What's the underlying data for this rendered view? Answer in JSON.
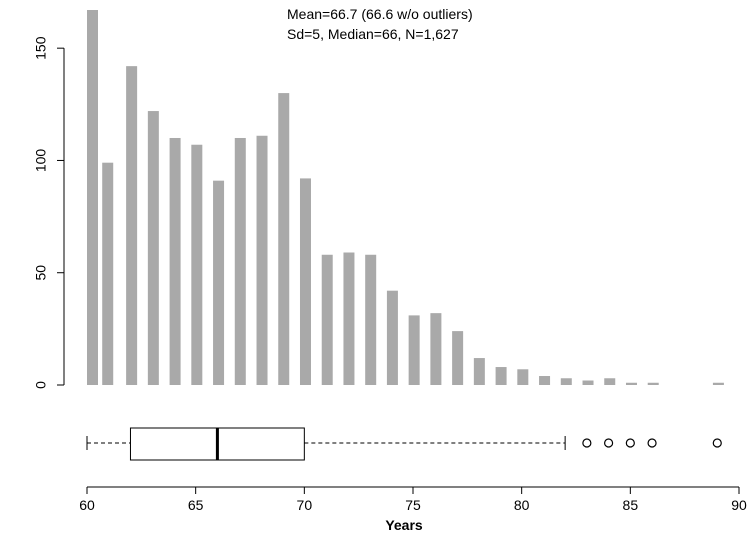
{
  "chart_data": {
    "type": "bar",
    "title": "",
    "xlabel": "Years",
    "ylabel": "",
    "annotation": [
      "Mean=66.7 (66.6 w/o outliers)",
      "Sd=5, Median=66, N=1,627"
    ],
    "x_ticks": [
      60,
      65,
      70,
      75,
      80,
      85,
      90
    ],
    "y_ticks": [
      0,
      50,
      100,
      150
    ],
    "xlim": [
      60,
      90
    ],
    "ylim": [
      0,
      167
    ],
    "grid": false,
    "colors": {
      "bar": "#a9a9a9"
    },
    "bars": [
      {
        "x": 60,
        "value": 167
      },
      {
        "x": 60.7,
        "value": 99
      },
      {
        "x": 61.8,
        "value": 142
      },
      {
        "x": 62.8,
        "value": 122
      },
      {
        "x": 63.8,
        "value": 110
      },
      {
        "x": 64.8,
        "value": 107
      },
      {
        "x": 65.8,
        "value": 91
      },
      {
        "x": 66.8,
        "value": 110
      },
      {
        "x": 67.8,
        "value": 111
      },
      {
        "x": 68.8,
        "value": 130
      },
      {
        "x": 69.8,
        "value": 92
      },
      {
        "x": 70.8,
        "value": 58
      },
      {
        "x": 71.8,
        "value": 59
      },
      {
        "x": 72.8,
        "value": 58
      },
      {
        "x": 73.8,
        "value": 42
      },
      {
        "x": 74.8,
        "value": 31
      },
      {
        "x": 75.8,
        "value": 32
      },
      {
        "x": 76.8,
        "value": 24
      },
      {
        "x": 77.8,
        "value": 12
      },
      {
        "x": 78.8,
        "value": 8
      },
      {
        "x": 79.8,
        "value": 7
      },
      {
        "x": 80.8,
        "value": 4
      },
      {
        "x": 81.8,
        "value": 3
      },
      {
        "x": 82.8,
        "value": 2
      },
      {
        "x": 83.8,
        "value": 3
      },
      {
        "x": 84.8,
        "value": 1
      },
      {
        "x": 85.8,
        "value": 1
      },
      {
        "x": 88.8,
        "value": 1
      }
    ],
    "boxplot": {
      "min": 60,
      "q1": 62,
      "median": 66,
      "q3": 70,
      "max": 82,
      "outliers": [
        83,
        84,
        85,
        86,
        89
      ]
    }
  }
}
